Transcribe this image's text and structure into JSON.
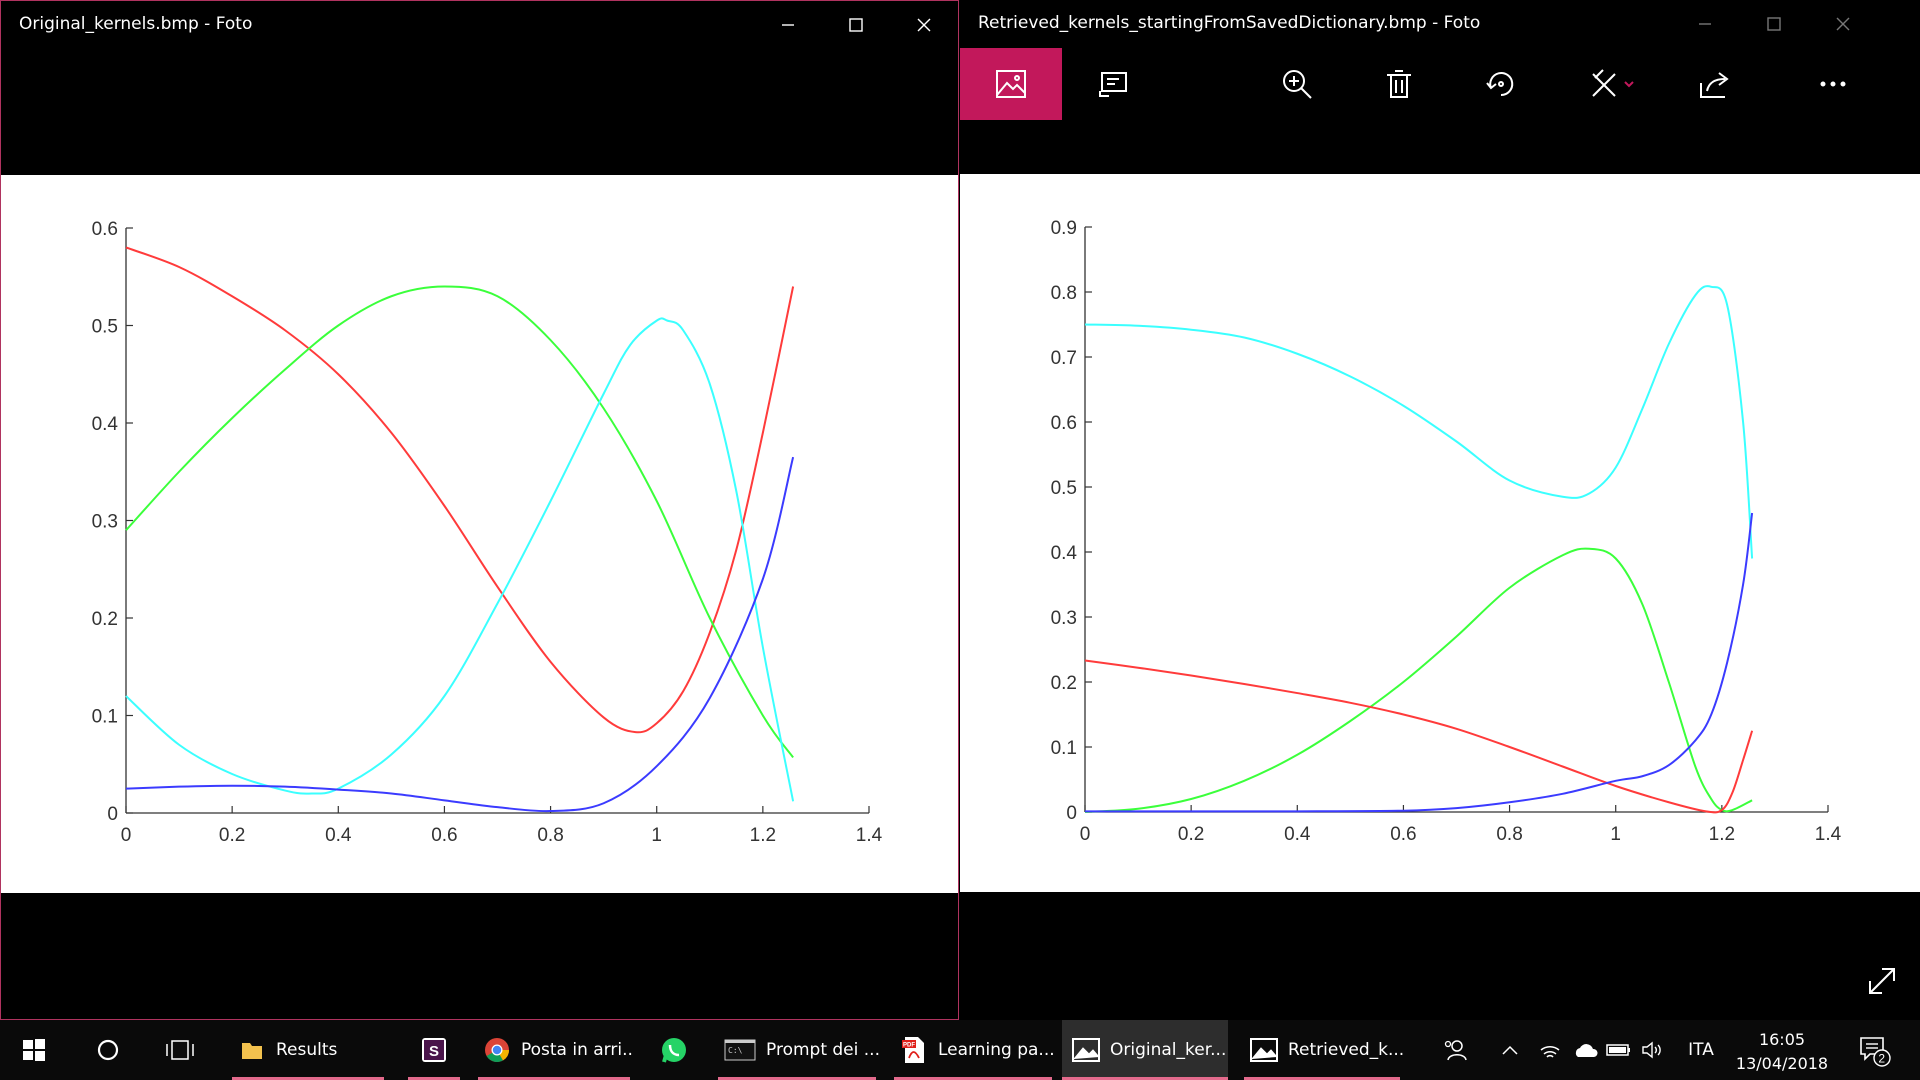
{
  "windows": [
    {
      "title": "Original_kernels.bmp - Foto",
      "chart_data": {
        "type": "line",
        "xlim": [
          0,
          1.4
        ],
        "ylim": [
          0,
          0.6
        ],
        "xticks": [
          "0",
          "0.2",
          "0.4",
          "0.6",
          "0.8",
          "1",
          "1.2",
          "1.4"
        ],
        "yticks": [
          "0",
          "0.1",
          "0.2",
          "0.3",
          "0.4",
          "0.5",
          "0.6"
        ],
        "xtick_values": [
          0,
          0.2,
          0.4,
          0.6,
          0.8,
          1,
          1.2,
          1.4
        ],
        "ytick_values": [
          0,
          0.1,
          0.2,
          0.3,
          0.4,
          0.5,
          0.6
        ],
        "series": [
          {
            "color": "#ff3b3b",
            "x": [
              0,
              0.1,
              0.2,
              0.3,
              0.4,
              0.5,
              0.6,
              0.7,
              0.8,
              0.9,
              0.96,
              1.0,
              1.05,
              1.1,
              1.15,
              1.2,
              1.257
            ],
            "y": [
              0.58,
              0.56,
              0.53,
              0.495,
              0.45,
              0.39,
              0.315,
              0.232,
              0.155,
              0.098,
              0.083,
              0.092,
              0.125,
              0.185,
              0.27,
              0.39,
              0.54
            ]
          },
          {
            "color": "#3bff3b",
            "x": [
              0,
              0.1,
              0.2,
              0.3,
              0.4,
              0.5,
              0.6,
              0.7,
              0.8,
              0.9,
              1.0,
              1.1,
              1.2,
              1.257
            ],
            "y": [
              0.29,
              0.35,
              0.405,
              0.455,
              0.5,
              0.53,
              0.54,
              0.53,
              0.485,
              0.415,
              0.32,
              0.2,
              0.1,
              0.057
            ]
          },
          {
            "color": "#3bffff",
            "x": [
              0,
              0.1,
              0.2,
              0.3,
              0.35,
              0.4,
              0.5,
              0.6,
              0.7,
              0.8,
              0.9,
              0.95,
              1.0,
              1.02,
              1.05,
              1.1,
              1.15,
              1.2,
              1.257
            ],
            "y": [
              0.12,
              0.07,
              0.04,
              0.023,
              0.02,
              0.025,
              0.06,
              0.12,
              0.215,
              0.32,
              0.43,
              0.48,
              0.505,
              0.505,
              0.495,
              0.44,
              0.33,
              0.17,
              0.012
            ]
          },
          {
            "color": "#3b3bff",
            "x": [
              0,
              0.1,
              0.2,
              0.3,
              0.4,
              0.5,
              0.6,
              0.7,
              0.8,
              0.9,
              1.0,
              1.1,
              1.2,
              1.257
            ],
            "y": [
              0.025,
              0.027,
              0.028,
              0.027,
              0.024,
              0.02,
              0.013,
              0.006,
              0.002,
              0.01,
              0.048,
              0.118,
              0.24,
              0.365
            ]
          }
        ]
      }
    },
    {
      "title": "Retrieved_kernels_startingFromSavedDictionary.bmp - Foto",
      "chart_data": {
        "type": "line",
        "xlim": [
          0,
          1.4
        ],
        "ylim": [
          0,
          0.9
        ],
        "xticks": [
          "0",
          "0.2",
          "0.4",
          "0.6",
          "0.8",
          "1",
          "1.2",
          "1.4"
        ],
        "yticks": [
          "0",
          "0.1",
          "0.2",
          "0.3",
          "0.4",
          "0.5",
          "0.6",
          "0.7",
          "0.8",
          "0.9"
        ],
        "xtick_values": [
          0,
          0.2,
          0.4,
          0.6,
          0.8,
          1,
          1.2,
          1.4
        ],
        "ytick_values": [
          0,
          0.1,
          0.2,
          0.3,
          0.4,
          0.5,
          0.6,
          0.7,
          0.8,
          0.9
        ],
        "series": [
          {
            "color": "#3bffff",
            "x": [
              0,
              0.1,
              0.2,
              0.3,
              0.4,
              0.5,
              0.6,
              0.7,
              0.8,
              0.9,
              0.95,
              1.0,
              1.05,
              1.1,
              1.15,
              1.18,
              1.21,
              1.24,
              1.257
            ],
            "y": [
              0.75,
              0.748,
              0.742,
              0.73,
              0.705,
              0.67,
              0.625,
              0.57,
              0.51,
              0.485,
              0.49,
              0.53,
              0.62,
              0.72,
              0.795,
              0.808,
              0.78,
              0.6,
              0.39
            ]
          },
          {
            "color": "#3bff3b",
            "x": [
              0,
              0.1,
              0.2,
              0.3,
              0.4,
              0.5,
              0.6,
              0.7,
              0.8,
              0.9,
              0.95,
              1.0,
              1.05,
              1.1,
              1.15,
              1.18,
              1.2,
              1.22,
              1.257
            ],
            "y": [
              0,
              0.005,
              0.02,
              0.048,
              0.088,
              0.14,
              0.2,
              0.27,
              0.345,
              0.395,
              0.405,
              0.39,
              0.32,
              0.2,
              0.07,
              0.02,
              0.003,
              0.003,
              0.018
            ]
          },
          {
            "color": "#ff3b3b",
            "x": [
              0,
              0.1,
              0.2,
              0.3,
              0.4,
              0.5,
              0.6,
              0.7,
              0.8,
              0.9,
              1.0,
              1.1,
              1.17,
              1.2,
              1.22,
              1.24,
              1.257
            ],
            "y": [
              0.233,
              0.222,
              0.21,
              0.197,
              0.183,
              0.168,
              0.15,
              0.128,
              0.1,
              0.07,
              0.04,
              0.015,
              0.001,
              0.003,
              0.03,
              0.08,
              0.125
            ]
          },
          {
            "color": "#3b3bff",
            "x": [
              0,
              0.2,
              0.4,
              0.6,
              0.7,
              0.8,
              0.9,
              1.0,
              1.05,
              1.1,
              1.15,
              1.18,
              1.21,
              1.24,
              1.257
            ],
            "y": [
              0.001,
              0.001,
              0.001,
              0.002,
              0.006,
              0.015,
              0.028,
              0.048,
              0.055,
              0.072,
              0.11,
              0.15,
              0.23,
              0.35,
              0.46
            ]
          }
        ]
      }
    }
  ],
  "taskbar": {
    "apps": [
      {
        "label": "Results"
      },
      {
        "label": ""
      },
      {
        "label": "Posta in arri..."
      },
      {
        "label": ""
      },
      {
        "label": "Prompt dei ..."
      },
      {
        "label": "Learning pa..."
      },
      {
        "label": "Original_ker..."
      },
      {
        "label": "Retrieved_k..."
      }
    ],
    "language": "ITA",
    "time": "16:05",
    "date": "13/04/2018",
    "notification_count": "2"
  }
}
